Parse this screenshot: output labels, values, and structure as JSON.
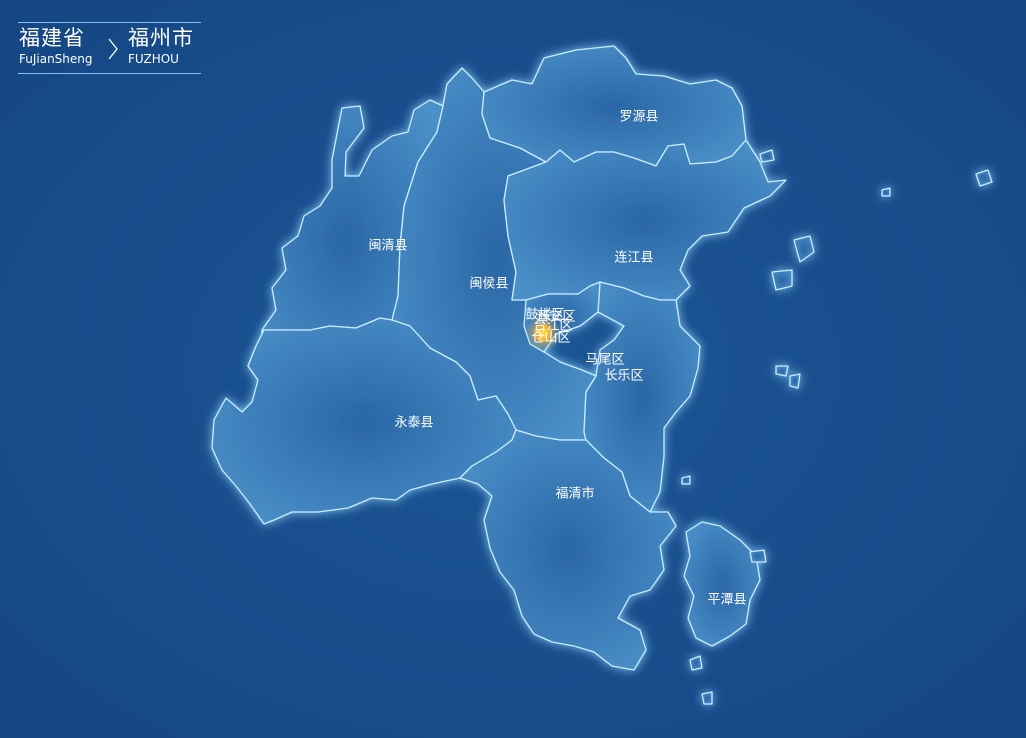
{
  "breadcrumb": {
    "province_cn": "福建省",
    "province_en": "FuJianSheng",
    "city_cn": "福州市",
    "city_en": "FUZHOU",
    "separator_icon": "chevron-right-icon"
  },
  "map": {
    "highlight_marker_icon": "pulse-dot-icon",
    "colors": {
      "background": "#1a4f8f",
      "region_fill": "#3f84bf",
      "region_stroke": "#bfe8ff",
      "glow": "#7fd0ff",
      "marker": "#f2b233"
    },
    "regions": [
      {
        "id": "luoyuan",
        "name": "罗源县"
      },
      {
        "id": "minqing",
        "name": "闽清县"
      },
      {
        "id": "minhou",
        "name": "闽侯县"
      },
      {
        "id": "lianjiang",
        "name": "连江县"
      },
      {
        "id": "gulou",
        "name": "鼓楼区"
      },
      {
        "id": "jinan",
        "name": "晋安区"
      },
      {
        "id": "taijiang",
        "name": "台江区"
      },
      {
        "id": "cangshan",
        "name": "仓山区"
      },
      {
        "id": "mawei",
        "name": "马尾区"
      },
      {
        "id": "changle",
        "name": "长乐区"
      },
      {
        "id": "yongtai",
        "name": "永泰县"
      },
      {
        "id": "fuqing",
        "name": "福清市"
      },
      {
        "id": "pingtan",
        "name": "平潭县"
      }
    ]
  }
}
